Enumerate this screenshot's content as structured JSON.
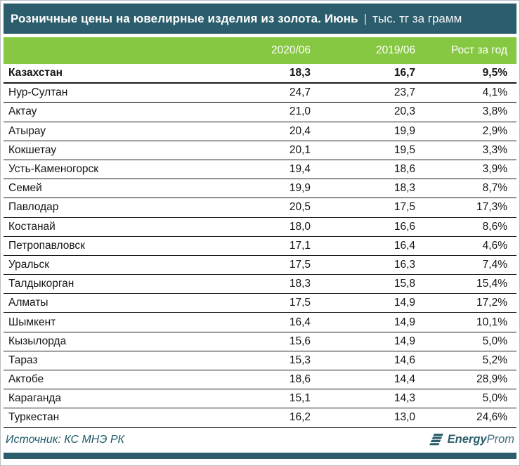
{
  "colors": {
    "teal_header": "#2c5d6c",
    "green_header": "#87c843",
    "row_border": "#1b1b1b",
    "source_text": "#1d5a6b"
  },
  "header": {
    "title": "Розничные цены на ювелирные изделия из золота. Июнь",
    "separator": "|",
    "unit": "тыс. тг за грамм"
  },
  "table": {
    "columns": [
      "",
      "2020/06",
      "2019/06",
      "Рост за год"
    ],
    "rows": [
      {
        "name": "Казахстан",
        "v2020": "18,3",
        "v2019": "16,7",
        "growth": "9,5%",
        "bold": true
      },
      {
        "name": "Нур-Султан",
        "v2020": "24,7",
        "v2019": "23,7",
        "growth": "4,1%",
        "bold": false
      },
      {
        "name": "Актау",
        "v2020": "21,0",
        "v2019": "20,3",
        "growth": "3,8%",
        "bold": false
      },
      {
        "name": "Атырау",
        "v2020": "20,4",
        "v2019": "19,9",
        "growth": "2,9%",
        "bold": false
      },
      {
        "name": "Кокшетау",
        "v2020": "20,1",
        "v2019": "19,5",
        "growth": "3,3%",
        "bold": false
      },
      {
        "name": "Усть-Каменогорск",
        "v2020": "19,4",
        "v2019": "18,6",
        "growth": "3,9%",
        "bold": false
      },
      {
        "name": "Семей",
        "v2020": "19,9",
        "v2019": "18,3",
        "growth": "8,7%",
        "bold": false
      },
      {
        "name": "Павлодар",
        "v2020": "20,5",
        "v2019": "17,5",
        "growth": "17,3%",
        "bold": false
      },
      {
        "name": "Костанай",
        "v2020": "18,0",
        "v2019": "16,6",
        "growth": "8,6%",
        "bold": false
      },
      {
        "name": "Петропавловск",
        "v2020": "17,1",
        "v2019": "16,4",
        "growth": "4,6%",
        "bold": false
      },
      {
        "name": "Уральск",
        "v2020": "17,5",
        "v2019": "16,3",
        "growth": "7,4%",
        "bold": false
      },
      {
        "name": "Талдыкорган",
        "v2020": "18,3",
        "v2019": "15,8",
        "growth": "15,4%",
        "bold": false
      },
      {
        "name": "Алматы",
        "v2020": "17,5",
        "v2019": "14,9",
        "growth": "17,2%",
        "bold": false
      },
      {
        "name": "Шымкент",
        "v2020": "16,4",
        "v2019": "14,9",
        "growth": "10,1%",
        "bold": false
      },
      {
        "name": "Кызылорда",
        "v2020": "15,6",
        "v2019": "14,9",
        "growth": "5,0%",
        "bold": false
      },
      {
        "name": "Тараз",
        "v2020": "15,3",
        "v2019": "14,6",
        "growth": "5,2%",
        "bold": false
      },
      {
        "name": "Актобе",
        "v2020": "18,6",
        "v2019": "14,4",
        "growth": "28,9%",
        "bold": false
      },
      {
        "name": "Караганда",
        "v2020": "15,1",
        "v2019": "14,3",
        "growth": "5,0%",
        "bold": false
      },
      {
        "name": "Туркестан",
        "v2020": "16,2",
        "v2019": "13,0",
        "growth": "24,6%",
        "bold": false
      }
    ]
  },
  "footer": {
    "source": "Источник: КС МНЭ РК",
    "logo_bold": "Energy",
    "logo_light": "Prom"
  },
  "chart_data": {
    "type": "table",
    "title": "Розничные цены на ювелирные изделия из золота. Июнь (тыс. тг за грамм)",
    "categories": [
      "Казахстан",
      "Нур-Султан",
      "Актау",
      "Атырау",
      "Кокшетау",
      "Усть-Каменогорск",
      "Семей",
      "Павлодар",
      "Костанай",
      "Петропавловск",
      "Уральск",
      "Талдыкорган",
      "Алматы",
      "Шымкент",
      "Кызылорда",
      "Тараз",
      "Актобе",
      "Караганда",
      "Туркестан"
    ],
    "series": [
      {
        "name": "2020/06",
        "values": [
          18.3,
          24.7,
          21.0,
          20.4,
          20.1,
          19.4,
          19.9,
          20.5,
          18.0,
          17.1,
          17.5,
          18.3,
          17.5,
          16.4,
          15.6,
          15.3,
          18.6,
          15.1,
          16.2
        ]
      },
      {
        "name": "2019/06",
        "values": [
          16.7,
          23.7,
          20.3,
          19.9,
          19.5,
          18.6,
          18.3,
          17.5,
          16.6,
          16.4,
          16.3,
          15.8,
          14.9,
          14.9,
          14.9,
          14.6,
          14.4,
          14.3,
          13.0
        ]
      },
      {
        "name": "Рост за год, %",
        "values": [
          9.5,
          4.1,
          3.8,
          2.9,
          3.3,
          3.9,
          8.7,
          17.3,
          8.6,
          4.6,
          7.4,
          15.4,
          17.2,
          10.1,
          5.0,
          5.2,
          28.9,
          5.0,
          24.6
        ]
      }
    ],
    "source": "КС МНЭ РК"
  }
}
